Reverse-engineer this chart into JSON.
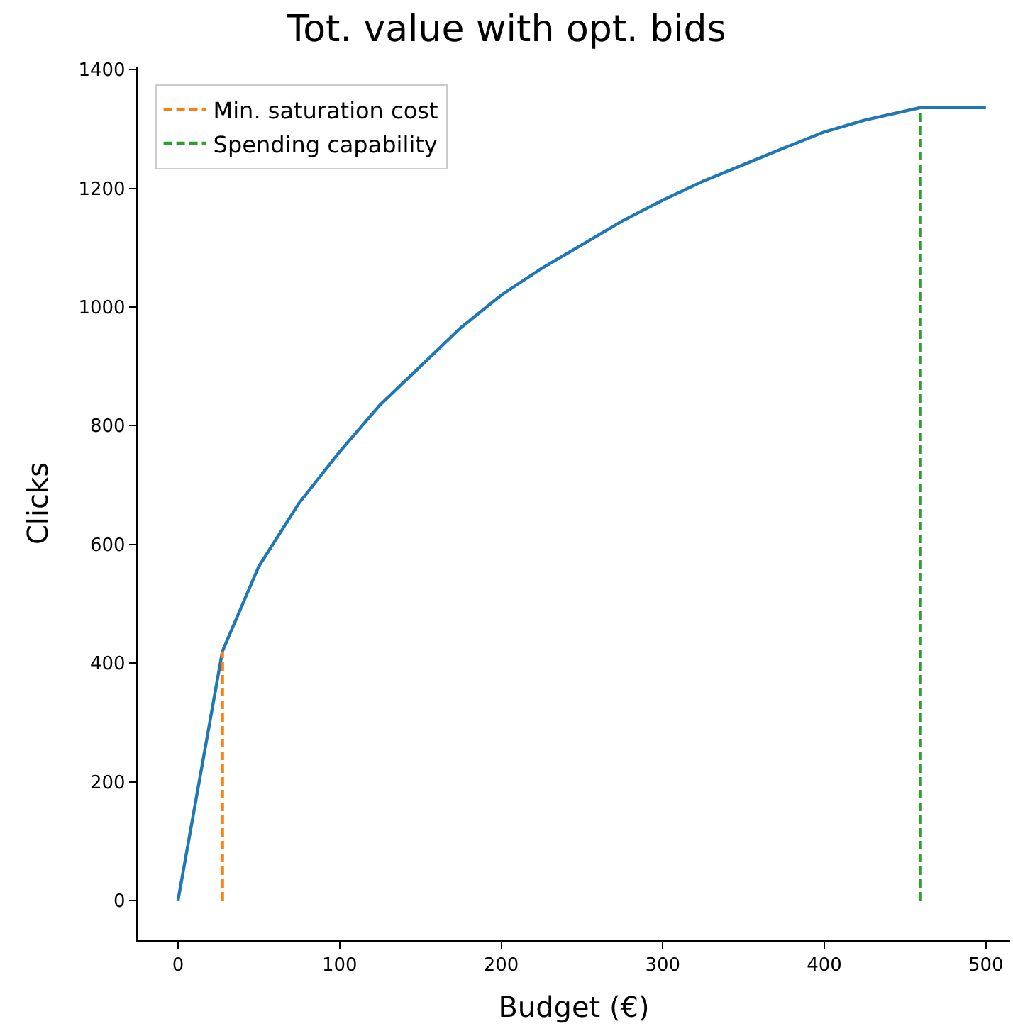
{
  "chart_data": {
    "type": "line",
    "title": "Tot. value with opt. bids",
    "xlabel": "Budget (€)",
    "ylabel": "Clicks",
    "series": [
      {
        "color": "#1f77b4",
        "x": [
          0,
          27.5,
          50,
          75,
          100,
          125,
          150,
          175,
          200,
          225,
          250,
          275,
          300,
          325,
          350,
          375,
          400,
          425,
          459.5,
          500
        ],
        "values": [
          0,
          420,
          563,
          670,
          756,
          835,
          900,
          965,
          1020,
          1065,
          1105,
          1145,
          1180,
          1212,
          1240,
          1268,
          1295,
          1315,
          1336,
          1336
        ]
      },
      {
        "name": "Min. saturation cost",
        "color": "#ff7f0e",
        "line_style": "dashed",
        "x": [
          27.5,
          27.5
        ],
        "values": [
          0,
          420
        ]
      },
      {
        "name": "Spending capability",
        "color": "#2ca02c",
        "line_style": "dashed",
        "x": [
          459.5,
          459.5
        ],
        "values": [
          0,
          1336
        ]
      }
    ],
    "xlim": [
      -25,
      515
    ],
    "xticks": [
      0,
      100,
      200,
      300,
      400,
      500
    ],
    "ylim": [
      -67,
      1405
    ],
    "yticks": [
      0,
      200,
      400,
      600,
      800,
      1000,
      1200,
      1400
    ],
    "legend": "top left",
    "marker": "none"
  }
}
